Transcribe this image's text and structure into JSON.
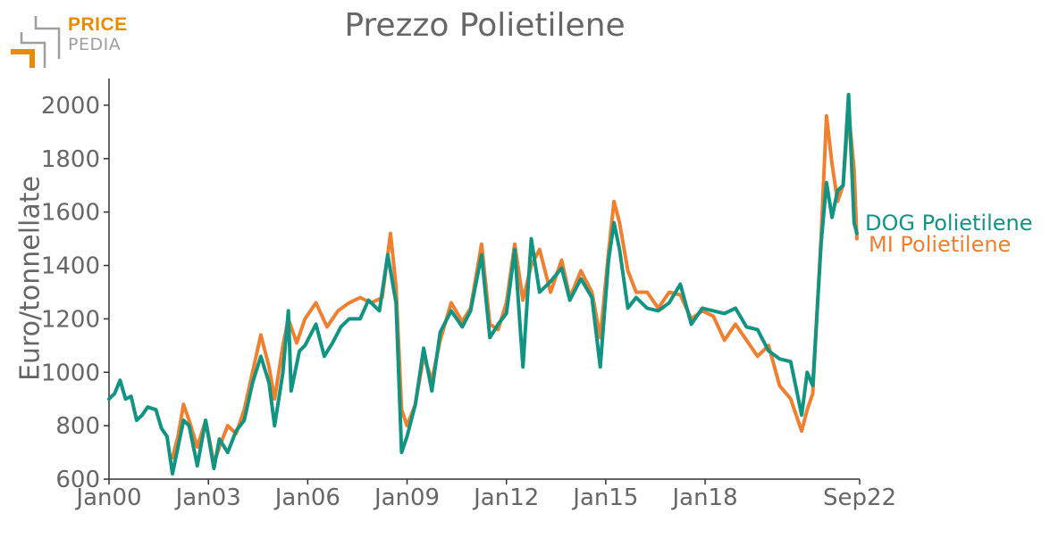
{
  "logo": {
    "top_text": "PRICE",
    "bottom_text": "PEDIA",
    "colors": {
      "orange": "#E88B00",
      "gray": "#9E9E9E"
    }
  },
  "chart_data": {
    "type": "line",
    "title": "Prezzo Polietilene",
    "ylabel": "Euro/tonnellate",
    "xlabel": "",
    "x_ticks": [
      "Jan00",
      "Jan03",
      "Jan06",
      "Jan09",
      "Jan12",
      "Jan15",
      "Jan18",
      "Sep22"
    ],
    "x_range": [
      "2000-01",
      "2022-09"
    ],
    "ylim": [
      600,
      2100
    ],
    "y_ticks": [
      600,
      800,
      1000,
      1200,
      1400,
      1600,
      1800,
      2000
    ],
    "grid": false,
    "legend_placement": "right-end",
    "series": [
      {
        "name": "MI Polietilene",
        "color": "#F08030",
        "points": [
          [
            "2001-12",
            680
          ],
          [
            "2002-02",
            760
          ],
          [
            "2002-04",
            880
          ],
          [
            "2002-06",
            820
          ],
          [
            "2002-09",
            720
          ],
          [
            "2002-12",
            820
          ],
          [
            "2003-03",
            660
          ],
          [
            "2003-05",
            720
          ],
          [
            "2003-08",
            800
          ],
          [
            "2003-11",
            770
          ],
          [
            "2004-02",
            860
          ],
          [
            "2004-05",
            1000
          ],
          [
            "2004-08",
            1140
          ],
          [
            "2004-11",
            1020
          ],
          [
            "2005-01",
            900
          ],
          [
            "2005-04",
            1100
          ],
          [
            "2005-06",
            1200
          ],
          [
            "2005-09",
            1110
          ],
          [
            "2005-12",
            1200
          ],
          [
            "2006-04",
            1260
          ],
          [
            "2006-08",
            1170
          ],
          [
            "2006-12",
            1230
          ],
          [
            "2007-04",
            1260
          ],
          [
            "2007-08",
            1280
          ],
          [
            "2007-12",
            1260
          ],
          [
            "2008-04",
            1280
          ],
          [
            "2008-07",
            1520
          ],
          [
            "2008-09",
            1320
          ],
          [
            "2008-11",
            860
          ],
          [
            "2009-01",
            800
          ],
          [
            "2009-04",
            880
          ],
          [
            "2009-07",
            1060
          ],
          [
            "2009-10",
            970
          ],
          [
            "2010-01",
            1120
          ],
          [
            "2010-05",
            1260
          ],
          [
            "2010-09",
            1190
          ],
          [
            "2010-12",
            1240
          ],
          [
            "2011-04",
            1480
          ],
          [
            "2011-07",
            1180
          ],
          [
            "2011-10",
            1160
          ],
          [
            "2012-01",
            1260
          ],
          [
            "2012-04",
            1480
          ],
          [
            "2012-07",
            1270
          ],
          [
            "2012-10",
            1400
          ],
          [
            "2013-01",
            1460
          ],
          [
            "2013-05",
            1300
          ],
          [
            "2013-09",
            1420
          ],
          [
            "2013-12",
            1280
          ],
          [
            "2014-04",
            1380
          ],
          [
            "2014-08",
            1300
          ],
          [
            "2014-11",
            1130
          ],
          [
            "2015-02",
            1450
          ],
          [
            "2015-04",
            1640
          ],
          [
            "2015-06",
            1560
          ],
          [
            "2015-09",
            1380
          ],
          [
            "2015-12",
            1300
          ],
          [
            "2016-04",
            1300
          ],
          [
            "2016-08",
            1240
          ],
          [
            "2016-12",
            1300
          ],
          [
            "2017-04",
            1290
          ],
          [
            "2017-08",
            1200
          ],
          [
            "2017-12",
            1230
          ],
          [
            "2018-04",
            1210
          ],
          [
            "2018-08",
            1120
          ],
          [
            "2018-12",
            1180
          ],
          [
            "2019-04",
            1120
          ],
          [
            "2019-08",
            1060
          ],
          [
            "2019-12",
            1100
          ],
          [
            "2020-04",
            950
          ],
          [
            "2020-08",
            900
          ],
          [
            "2020-12",
            780
          ],
          [
            "2021-02",
            860
          ],
          [
            "2021-04",
            920
          ],
          [
            "2021-07",
            1500
          ],
          [
            "2021-09",
            1960
          ],
          [
            "2021-11",
            1780
          ],
          [
            "2022-01",
            1640
          ],
          [
            "2022-03",
            1700
          ],
          [
            "2022-05",
            1980
          ],
          [
            "2022-07",
            1760
          ],
          [
            "2022-08",
            1500
          ]
        ]
      },
      {
        "name": "DOG Polietilene",
        "color": "#119482",
        "points": [
          [
            "2000-01",
            900
          ],
          [
            "2000-03",
            920
          ],
          [
            "2000-05",
            970
          ],
          [
            "2000-07",
            900
          ],
          [
            "2000-09",
            910
          ],
          [
            "2000-11",
            820
          ],
          [
            "2001-01",
            840
          ],
          [
            "2001-03",
            870
          ],
          [
            "2001-06",
            860
          ],
          [
            "2001-08",
            790
          ],
          [
            "2001-10",
            760
          ],
          [
            "2001-12",
            620
          ],
          [
            "2002-02",
            720
          ],
          [
            "2002-04",
            820
          ],
          [
            "2002-06",
            800
          ],
          [
            "2002-09",
            650
          ],
          [
            "2002-12",
            820
          ],
          [
            "2003-03",
            640
          ],
          [
            "2003-05",
            750
          ],
          [
            "2003-08",
            700
          ],
          [
            "2003-11",
            780
          ],
          [
            "2004-02",
            820
          ],
          [
            "2004-05",
            960
          ],
          [
            "2004-08",
            1060
          ],
          [
            "2004-11",
            960
          ],
          [
            "2005-01",
            800
          ],
          [
            "2005-04",
            1000
          ],
          [
            "2005-06",
            1230
          ],
          [
            "2005-07",
            930
          ],
          [
            "2005-10",
            1080
          ],
          [
            "2005-12",
            1100
          ],
          [
            "2006-04",
            1180
          ],
          [
            "2006-07",
            1060
          ],
          [
            "2006-10",
            1110
          ],
          [
            "2007-01",
            1170
          ],
          [
            "2007-04",
            1200
          ],
          [
            "2007-08",
            1200
          ],
          [
            "2007-11",
            1270
          ],
          [
            "2008-03",
            1230
          ],
          [
            "2008-06",
            1440
          ],
          [
            "2008-09",
            1260
          ],
          [
            "2008-11",
            700
          ],
          [
            "2009-01",
            760
          ],
          [
            "2009-04",
            880
          ],
          [
            "2009-07",
            1090
          ],
          [
            "2009-10",
            930
          ],
          [
            "2010-01",
            1150
          ],
          [
            "2010-05",
            1230
          ],
          [
            "2010-09",
            1170
          ],
          [
            "2010-12",
            1230
          ],
          [
            "2011-04",
            1440
          ],
          [
            "2011-07",
            1130
          ],
          [
            "2011-10",
            1180
          ],
          [
            "2012-01",
            1220
          ],
          [
            "2012-04",
            1460
          ],
          [
            "2012-07",
            1020
          ],
          [
            "2012-10",
            1500
          ],
          [
            "2013-01",
            1300
          ],
          [
            "2013-05",
            1340
          ],
          [
            "2013-09",
            1390
          ],
          [
            "2013-12",
            1270
          ],
          [
            "2014-04",
            1350
          ],
          [
            "2014-08",
            1280
          ],
          [
            "2014-11",
            1020
          ],
          [
            "2015-02",
            1420
          ],
          [
            "2015-04",
            1560
          ],
          [
            "2015-06",
            1460
          ],
          [
            "2015-09",
            1240
          ],
          [
            "2015-12",
            1280
          ],
          [
            "2016-04",
            1240
          ],
          [
            "2016-08",
            1230
          ],
          [
            "2016-12",
            1260
          ],
          [
            "2017-04",
            1330
          ],
          [
            "2017-08",
            1180
          ],
          [
            "2017-12",
            1240
          ],
          [
            "2018-04",
            1230
          ],
          [
            "2018-08",
            1220
          ],
          [
            "2018-12",
            1240
          ],
          [
            "2019-04",
            1170
          ],
          [
            "2019-08",
            1160
          ],
          [
            "2019-12",
            1080
          ],
          [
            "2020-04",
            1050
          ],
          [
            "2020-08",
            1040
          ],
          [
            "2020-12",
            840
          ],
          [
            "2021-02",
            1000
          ],
          [
            "2021-04",
            950
          ],
          [
            "2021-07",
            1480
          ],
          [
            "2021-09",
            1710
          ],
          [
            "2021-11",
            1580
          ],
          [
            "2022-01",
            1680
          ],
          [
            "2022-03",
            1700
          ],
          [
            "2022-05",
            2040
          ],
          [
            "2022-07",
            1560
          ],
          [
            "2022-08",
            1520
          ]
        ]
      }
    ]
  }
}
